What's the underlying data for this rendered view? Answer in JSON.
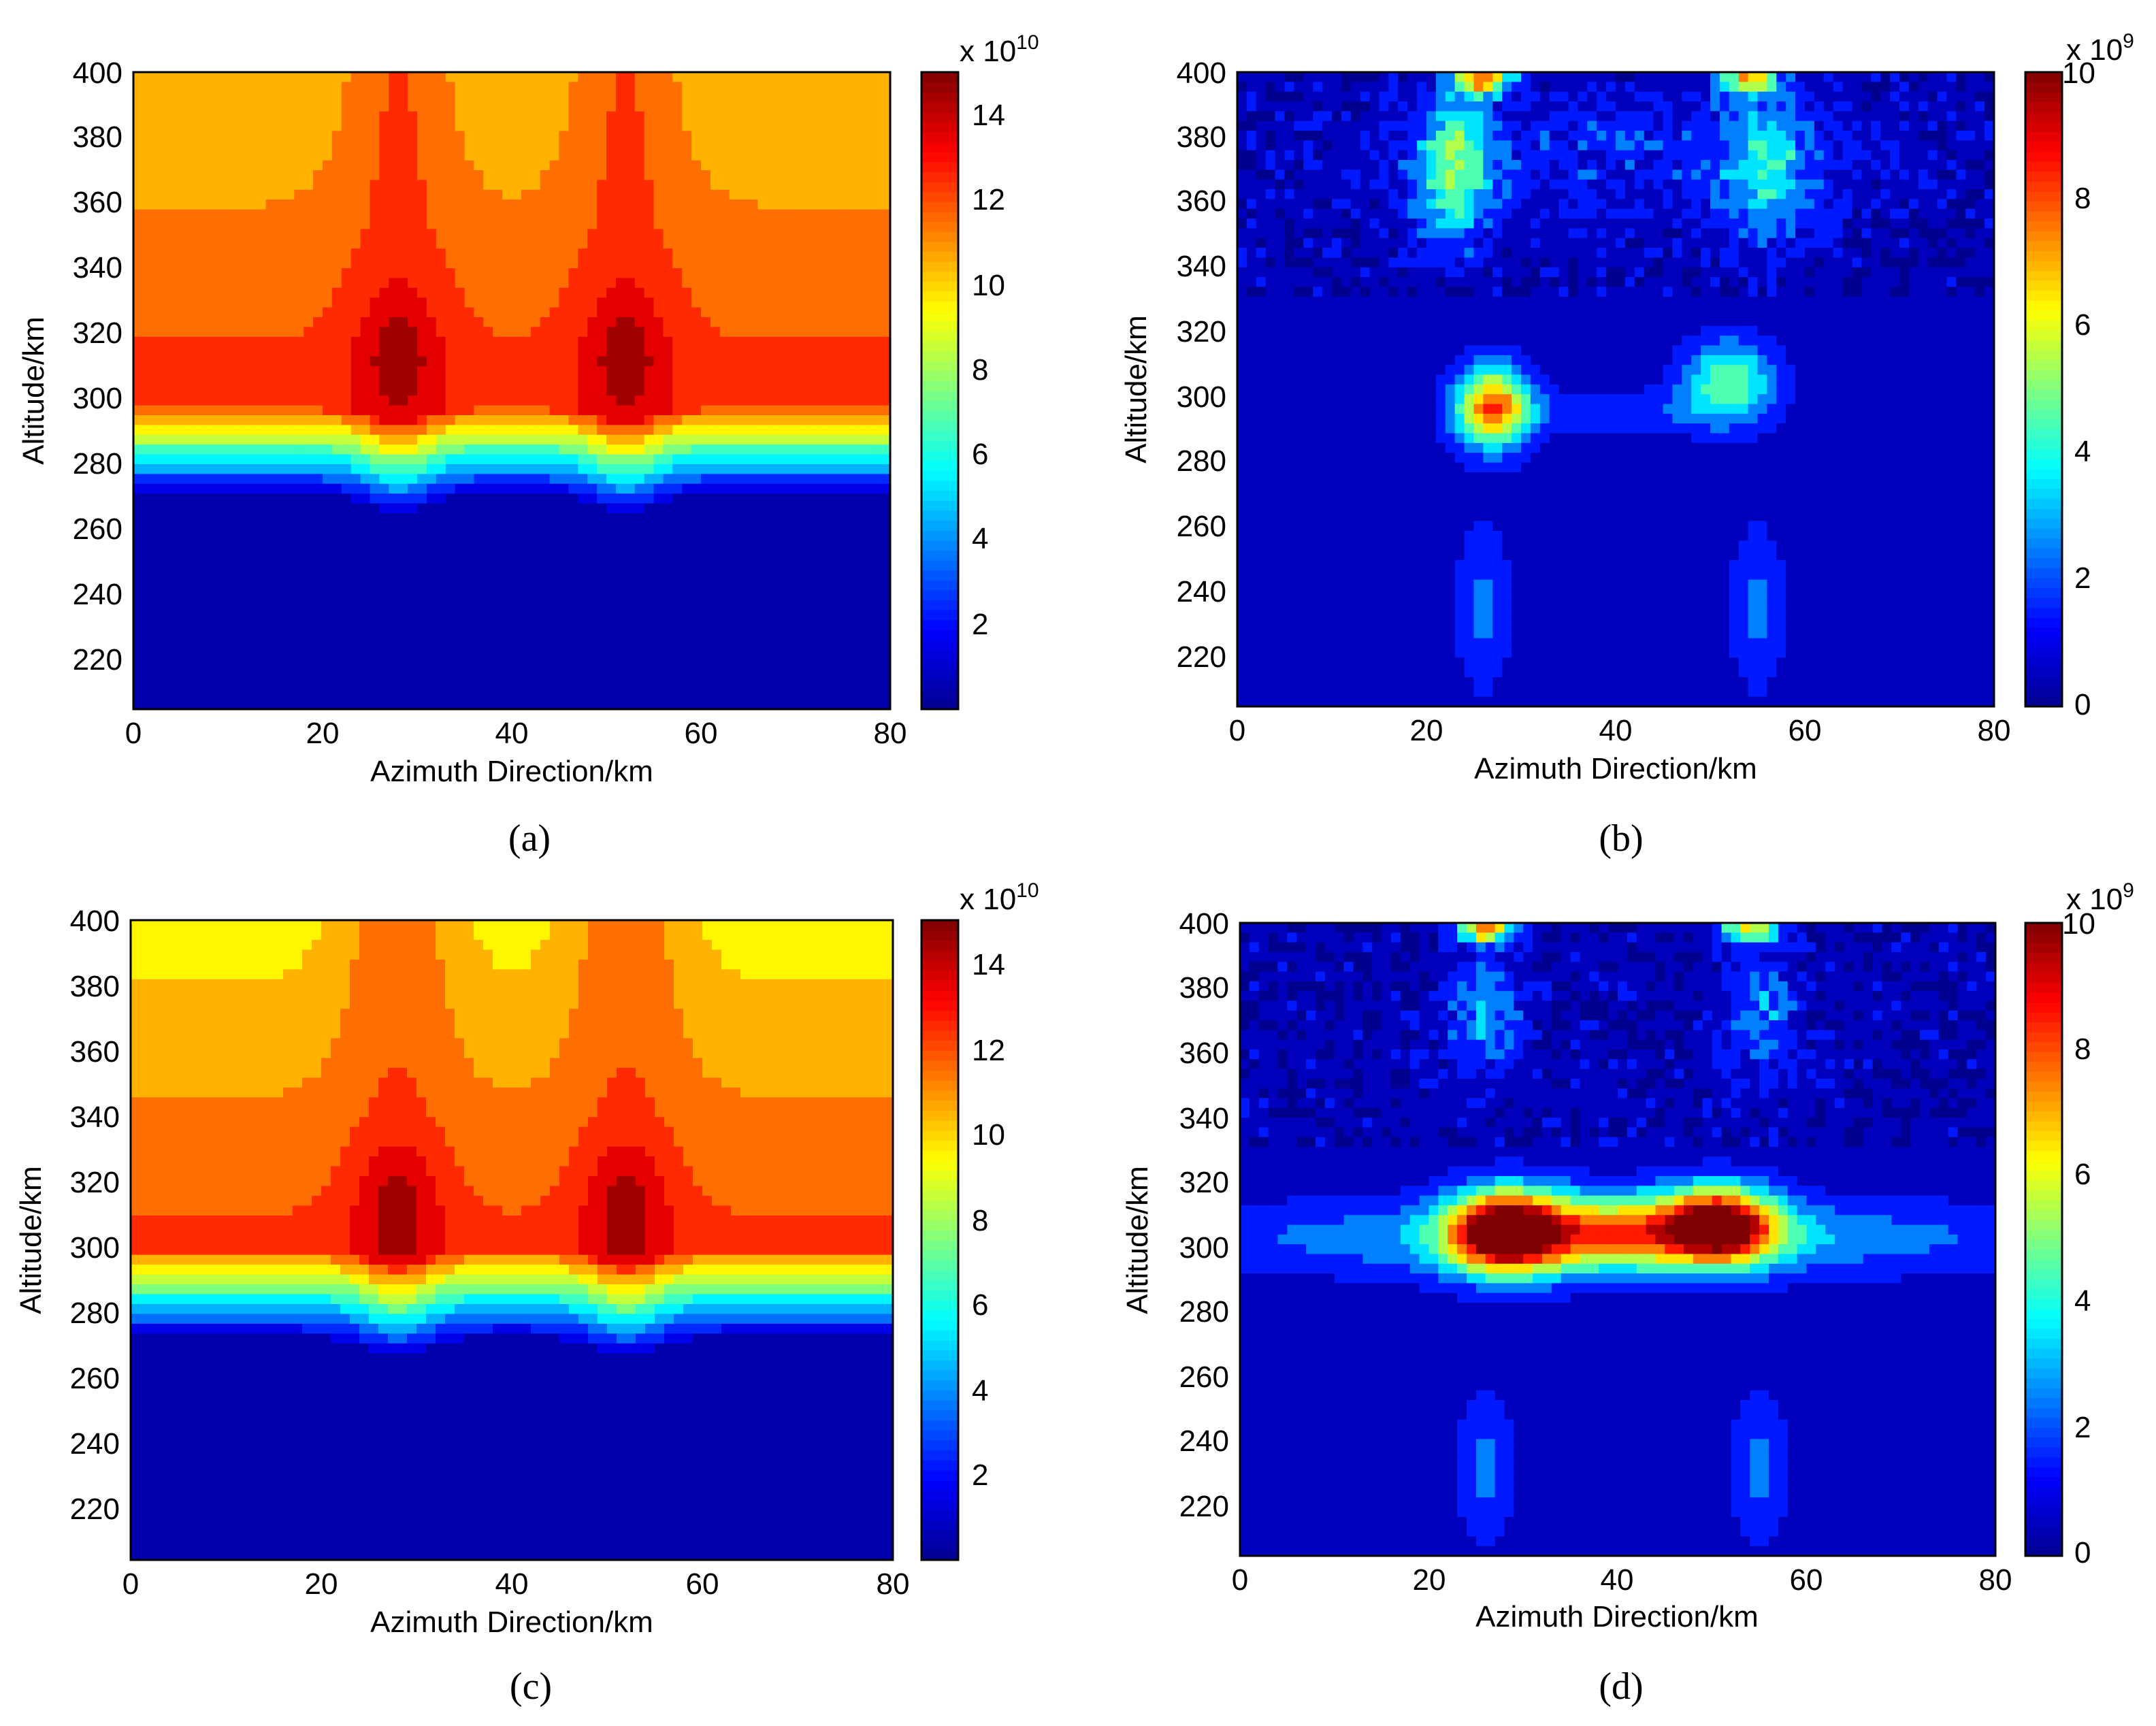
{
  "colormap": [
    "#00008f",
    "#0000ff",
    "#007fff",
    "#00ffff",
    "#7fff7f",
    "#ffff00",
    "#ff7f00",
    "#ff0000",
    "#7f0000"
  ],
  "chart_data": [
    {
      "type": "contour",
      "panel_label": "(a)",
      "xlabel": "Azimuth Direction/km",
      "ylabel": "Altitude/km",
      "xlim": [
        0,
        80
      ],
      "ylim": [
        205,
        400
      ],
      "x_ticks": [
        "0",
        "20",
        "40",
        "60",
        "80"
      ],
      "y_ticks": [
        "220",
        "240",
        "260",
        "280",
        "300",
        "320",
        "340",
        "360",
        "380",
        "400"
      ],
      "colorbar": {
        "exp_base": "x 10",
        "exp": "10",
        "range": [
          0,
          15
        ],
        "ticks": [
          "2",
          "4",
          "6",
          "8",
          "10",
          "12",
          "14"
        ]
      },
      "field": {
        "top": 10.0,
        "top_gain": 2.0,
        "shoulder": 12.5,
        "base_alt": 298,
        "wall_width": 28,
        "floor": 0.5,
        "peak_gain": 2.2,
        "peaks": [
          {
            "x": 28,
            "y": 312
          },
          {
            "x": 52,
            "y": 312
          }
        ],
        "holes": []
      }
    },
    {
      "type": "contour",
      "panel_label": "(b)",
      "xlabel": "Azimuth Direction/km",
      "ylabel": "Altitude/km",
      "xlim": [
        0,
        80
      ],
      "ylim": [
        205,
        400
      ],
      "x_ticks": [
        "0",
        "20",
        "40",
        "60",
        "80"
      ],
      "y_ticks": [
        "220",
        "240",
        "260",
        "280",
        "300",
        "320",
        "340",
        "360",
        "380",
        "400"
      ],
      "colorbar": {
        "exp_base": "x 10",
        "exp": "9",
        "range": [
          0,
          10
        ],
        "ticks": [
          "0",
          "2",
          "4",
          "6",
          "8",
          "10"
        ]
      },
      "field": {
        "background": 0.3,
        "noise": 0.8,
        "blobs": [
          {
            "x": 27,
            "y": 297,
            "sx": 4,
            "sy": 13,
            "a": 7.5
          },
          {
            "x": 52,
            "y": 305,
            "sx": 5,
            "sy": 13,
            "a": 4.6
          },
          {
            "x": 23,
            "y": 370,
            "sx": 4,
            "sy": 22,
            "a": 4.3
          },
          {
            "x": 56,
            "y": 370,
            "sx": 5,
            "sy": 22,
            "a": 3.0
          },
          {
            "x": 26,
            "y": 398,
            "sx": 3,
            "sy": 5,
            "a": 7.0
          },
          {
            "x": 54,
            "y": 398,
            "sx": 3,
            "sy": 5,
            "a": 6.0
          },
          {
            "x": 26,
            "y": 235,
            "sx": 3,
            "sy": 26,
            "a": 1.9
          },
          {
            "x": 55,
            "y": 235,
            "sx": 3,
            "sy": 26,
            "a": 1.9
          },
          {
            "x": 40,
            "y": 295,
            "sx": 12,
            "sy": 7,
            "a": 1.6
          },
          {
            "x": 40,
            "y": 375,
            "sx": 26,
            "sy": 20,
            "a": 1.2
          }
        ]
      }
    },
    {
      "type": "contour",
      "panel_label": "(c)",
      "xlabel": "Azimuth Direction/km",
      "ylabel": "Altitude/km",
      "xlim": [
        0,
        80
      ],
      "ylim": [
        205,
        400
      ],
      "x_ticks": [
        "0",
        "20",
        "40",
        "60",
        "80"
      ],
      "y_ticks": [
        "220",
        "240",
        "260",
        "280",
        "300",
        "320",
        "340",
        "360",
        "380",
        "400"
      ],
      "colorbar": {
        "exp_base": "x 10",
        "exp": "10",
        "range": [
          0,
          15
        ],
        "ticks": [
          "2",
          "4",
          "6",
          "8",
          "10",
          "12",
          "14"
        ]
      },
      "field": {
        "top": 9.5,
        "top_gain": 2.2,
        "shoulder": 12.3,
        "base_alt": 300,
        "wall_width": 28,
        "floor": 0.5,
        "peak_gain": 2.4,
        "peaks": [
          {
            "x": 28,
            "y": 310
          },
          {
            "x": 52,
            "y": 310
          }
        ],
        "holes": []
      }
    },
    {
      "type": "contour",
      "panel_label": "(d)",
      "xlabel": "Azimuth Direction/km",
      "ylabel": "Altitude/km",
      "xlim": [
        0,
        80
      ],
      "ylim": [
        205,
        400
      ],
      "x_ticks": [
        "0",
        "20",
        "40",
        "60",
        "80"
      ],
      "y_ticks": [
        "220",
        "240",
        "260",
        "280",
        "300",
        "320",
        "340",
        "360",
        "380",
        "400"
      ],
      "colorbar": {
        "exp_base": "x 10",
        "exp": "9",
        "range": [
          0,
          10
        ],
        "ticks": [
          "0",
          "2",
          "4",
          "6",
          "8",
          "10"
        ]
      },
      "field": {
        "background": 0.3,
        "noise": 0.8,
        "blobs": [
          {
            "x": 28,
            "y": 305,
            "sx": 6,
            "sy": 13,
            "a": 9.5
          },
          {
            "x": 51,
            "y": 307,
            "sx": 6,
            "sy": 12,
            "a": 8.5
          },
          {
            "x": 40,
            "y": 305,
            "sx": 10,
            "sy": 12,
            "a": 4.5
          },
          {
            "x": 40,
            "y": 303,
            "sx": 45,
            "sy": 12,
            "a": 3.2
          },
          {
            "x": 26,
            "y": 372,
            "sx": 4,
            "sy": 18,
            "a": 2.6
          },
          {
            "x": 55,
            "y": 372,
            "sx": 4,
            "sy": 18,
            "a": 2.2
          },
          {
            "x": 26,
            "y": 398,
            "sx": 3,
            "sy": 4,
            "a": 7.0
          },
          {
            "x": 54,
            "y": 398,
            "sx": 3,
            "sy": 4,
            "a": 6.0
          },
          {
            "x": 26,
            "y": 232,
            "sx": 3,
            "sy": 22,
            "a": 2.1
          },
          {
            "x": 55,
            "y": 232,
            "sx": 3,
            "sy": 22,
            "a": 2.1
          }
        ]
      }
    }
  ]
}
